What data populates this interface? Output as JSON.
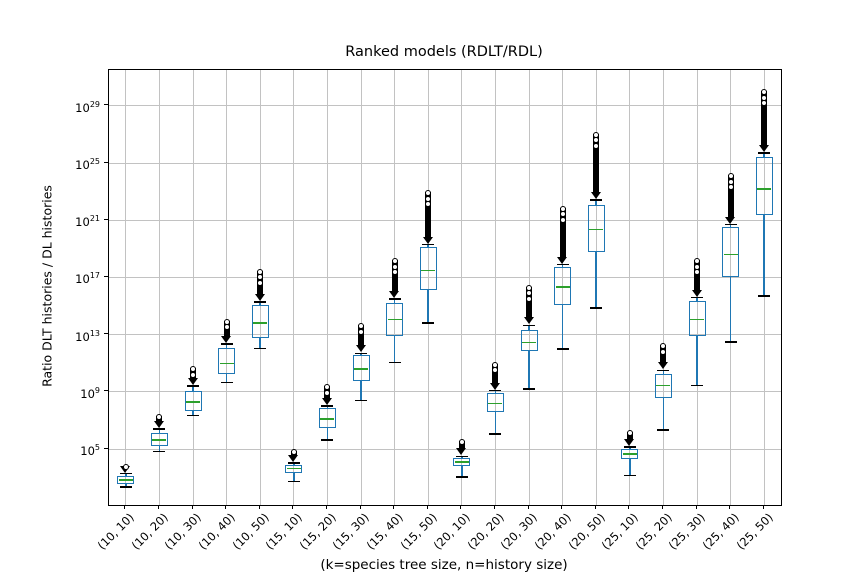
{
  "chart_data": {
    "type": "boxplot",
    "title": "Ranked models (RDLT/RDL)",
    "xlabel": "(k=species tree size, n=history size)",
    "ylabel": "Ratio DLT histories / DL histories",
    "yscale": "log",
    "note": "all numeric values below are log10 exponents read from the y axis",
    "ylim": [
      1.1,
      31.5
    ],
    "yticks": [
      5,
      9,
      13,
      17,
      21,
      25,
      29
    ],
    "grid": true,
    "categories": [
      "(10, 10)",
      "(10, 20)",
      "(10, 30)",
      "(10, 40)",
      "(10, 50)",
      "(15, 10)",
      "(15, 20)",
      "(15, 30)",
      "(15, 40)",
      "(15, 50)",
      "(20, 10)",
      "(20, 20)",
      "(20, 30)",
      "(20, 40)",
      "(20, 50)",
      "(25, 10)",
      "(25, 20)",
      "(25, 30)",
      "(25, 40)",
      "(25, 50)"
    ],
    "boxes": [
      {
        "label": "(10, 10)",
        "whisker_low": 2.35,
        "q1": 2.55,
        "median": 2.85,
        "q3": 3.1,
        "whisker_high": 3.3,
        "fliers_max": 4.0
      },
      {
        "label": "(10, 20)",
        "whisker_low": 4.85,
        "q1": 5.2,
        "median": 5.65,
        "q3": 6.1,
        "whisker_high": 6.4,
        "fliers_max": 7.45
      },
      {
        "label": "(10, 30)",
        "whisker_low": 7.35,
        "q1": 7.65,
        "median": 8.3,
        "q3": 9.1,
        "whisker_high": 9.4,
        "fliers_max": 10.8
      },
      {
        "label": "(10, 40)",
        "whisker_low": 9.65,
        "q1": 10.25,
        "median": 11.0,
        "q3": 12.1,
        "whisker_high": 12.35,
        "fliers_max": 14.1
      },
      {
        "label": "(10, 50)",
        "whisker_low": 12.05,
        "q1": 12.8,
        "median": 13.8,
        "q3": 15.1,
        "whisker_high": 15.3,
        "fliers_max": 17.6
      },
      {
        "label": "(15, 10)",
        "whisker_low": 2.75,
        "q1": 3.35,
        "median": 3.65,
        "q3": 3.9,
        "whisker_high": 4.05,
        "fliers_max": 5.0
      },
      {
        "label": "(15, 20)",
        "whisker_low": 5.65,
        "q1": 6.45,
        "median": 7.1,
        "q3": 7.85,
        "whisker_high": 8.0,
        "fliers_max": 9.55
      },
      {
        "label": "(15, 30)",
        "whisker_low": 8.4,
        "q1": 9.8,
        "median": 10.6,
        "q3": 11.55,
        "whisker_high": 11.7,
        "fliers_max": 13.8
      },
      {
        "label": "(15, 40)",
        "whisker_low": 11.05,
        "q1": 12.9,
        "median": 14.05,
        "q3": 15.25,
        "whisker_high": 15.5,
        "fliers_max": 18.35
      },
      {
        "label": "(15, 50)",
        "whisker_low": 13.8,
        "q1": 16.15,
        "median": 17.5,
        "q3": 19.1,
        "whisker_high": 19.3,
        "fliers_max": 23.1
      },
      {
        "label": "(20, 10)",
        "whisker_low": 3.05,
        "q1": 3.8,
        "median": 4.1,
        "q3": 4.35,
        "whisker_high": 4.5,
        "fliers_max": 5.7
      },
      {
        "label": "(20, 20)",
        "whisker_low": 6.05,
        "q1": 7.6,
        "median": 8.2,
        "q3": 8.9,
        "whisker_high": 9.1,
        "fliers_max": 11.1
      },
      {
        "label": "(20, 30)",
        "whisker_low": 9.2,
        "q1": 11.85,
        "median": 12.45,
        "q3": 13.35,
        "whisker_high": 13.65,
        "fliers_max": 16.5
      },
      {
        "label": "(20, 40)",
        "whisker_low": 12.0,
        "q1": 15.1,
        "median": 16.35,
        "q3": 17.7,
        "whisker_high": 17.9,
        "fliers_max": 22.0
      },
      {
        "label": "(20, 50)",
        "whisker_low": 14.85,
        "q1": 18.8,
        "median": 20.35,
        "q3": 22.05,
        "whisker_high": 22.4,
        "fliers_max": 27.2
      },
      {
        "label": "(25, 10)",
        "whisker_low": 3.15,
        "q1": 4.3,
        "median": 4.65,
        "q3": 5.0,
        "whisker_high": 5.15,
        "fliers_max": 6.35
      },
      {
        "label": "(25, 20)",
        "whisker_low": 6.35,
        "q1": 8.55,
        "median": 9.45,
        "q3": 10.25,
        "whisker_high": 10.5,
        "fliers_max": 12.4
      },
      {
        "label": "(25, 30)",
        "whisker_low": 9.45,
        "q1": 12.9,
        "median": 14.05,
        "q3": 15.35,
        "whisker_high": 15.6,
        "fliers_max": 18.35
      },
      {
        "label": "(25, 40)",
        "whisker_low": 12.5,
        "q1": 17.0,
        "median": 18.6,
        "q3": 20.5,
        "whisker_high": 20.7,
        "fliers_max": 24.3
      },
      {
        "label": "(25, 50)",
        "whisker_low": 15.7,
        "q1": 21.35,
        "median": 23.2,
        "q3": 25.4,
        "whisker_high": 25.7,
        "fliers_max": 30.15
      }
    ]
  },
  "colors": {
    "box": "#1f77b4",
    "whisker": "#1f77b4",
    "median": "#2ca02c",
    "caps": "#000000",
    "fliers": "#000000",
    "grid": "#c2c2c2",
    "spine": "#000000",
    "background": "#ffffff"
  }
}
